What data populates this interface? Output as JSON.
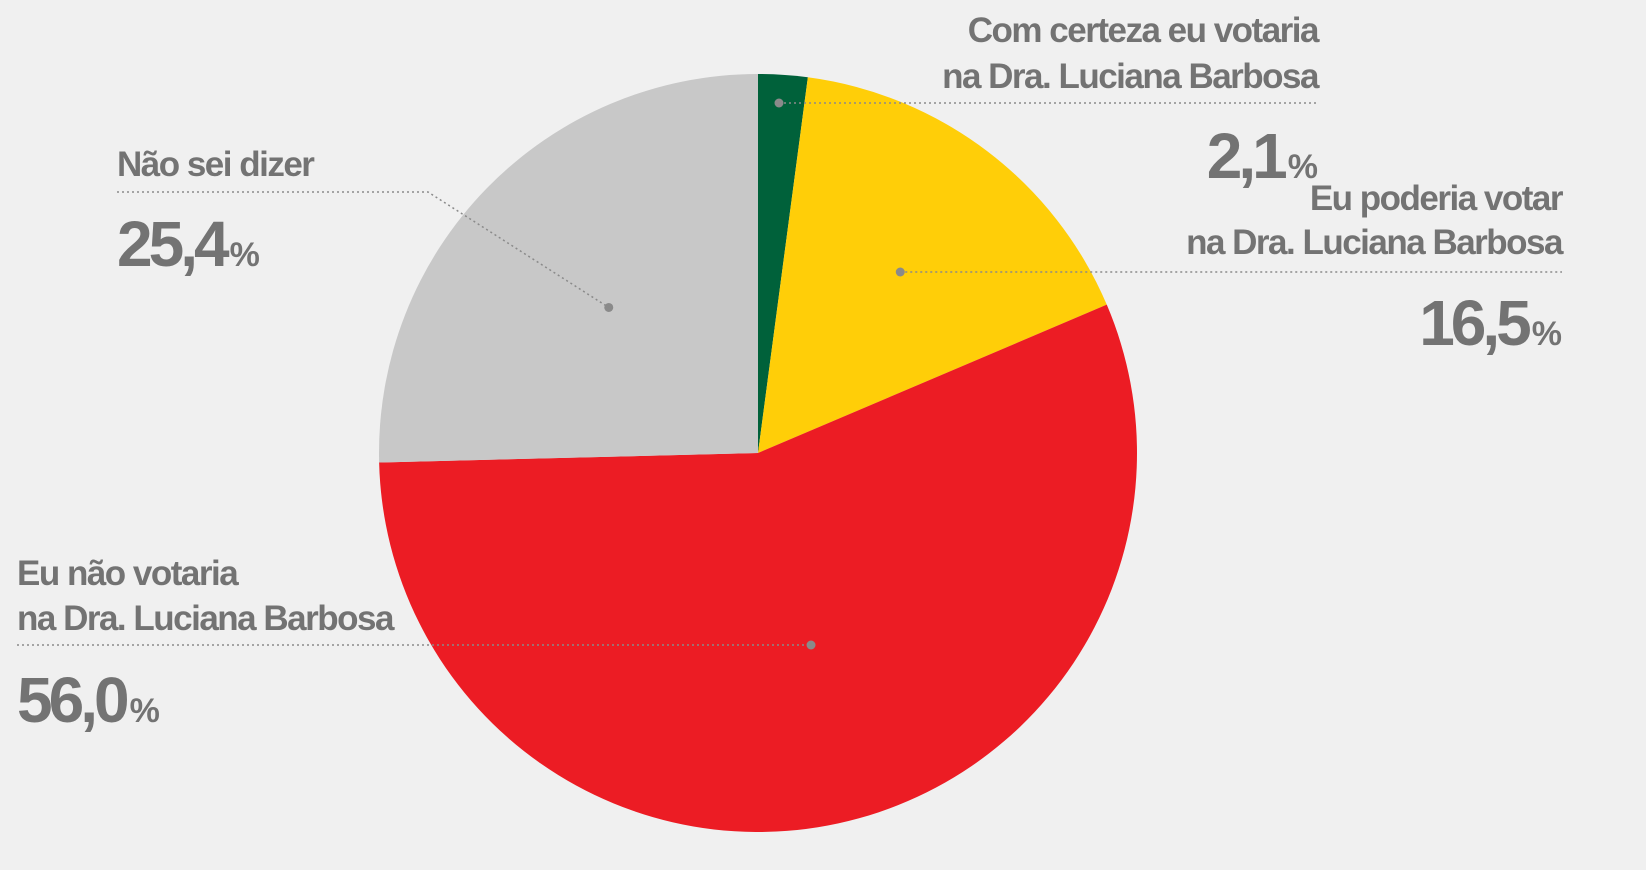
{
  "chart_data": {
    "type": "pie",
    "start_angle": "12 o'clock",
    "direction": "clockwise",
    "slices": [
      {
        "label_lines": [
          "Com certeza eu votaria",
          "na Dra. Luciana Barbosa"
        ],
        "value": 2.1,
        "value_text": "2,1",
        "unit": "%",
        "color": "#00613a"
      },
      {
        "label_lines": [
          "Eu poderia votar",
          "na Dra. Luciana Barbosa"
        ],
        "value": 16.5,
        "value_text": "16,5",
        "unit": "%",
        "color": "#ffce08"
      },
      {
        "label_lines": [
          "Eu não votaria",
          "na Dra. Luciana Barbosa"
        ],
        "value": 56.0,
        "value_text": "56,0",
        "unit": "%",
        "color": "#ec1c24"
      },
      {
        "label_lines": [
          "Não sei dizer"
        ],
        "value": 25.4,
        "value_text": "25,4",
        "unit": "%",
        "color": "#c8c8c8"
      }
    ]
  }
}
